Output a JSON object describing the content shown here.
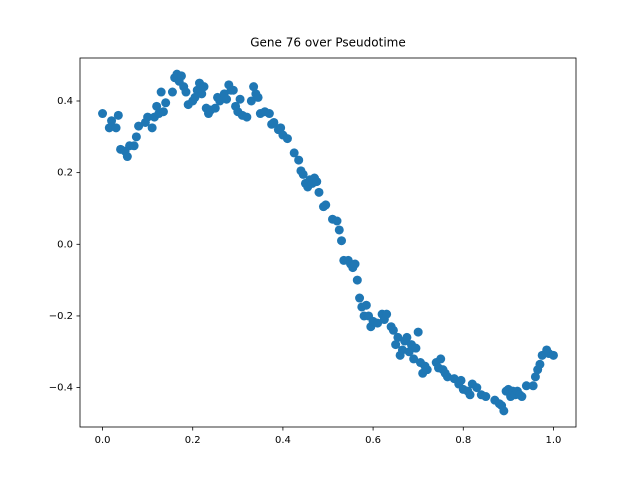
{
  "chart_data": {
    "type": "scatter",
    "title": "Gene 76 over Pseudotime",
    "color": "#1f77b4",
    "x": [
      0.0,
      0.015,
      0.02,
      0.03,
      0.035,
      0.04,
      0.05,
      0.055,
      0.06,
      0.07,
      0.075,
      0.08,
      0.095,
      0.1,
      0.11,
      0.115,
      0.12,
      0.125,
      0.13,
      0.135,
      0.14,
      0.155,
      0.16,
      0.165,
      0.17,
      0.175,
      0.18,
      0.185,
      0.19,
      0.2,
      0.205,
      0.21,
      0.215,
      0.22,
      0.225,
      0.23,
      0.235,
      0.24,
      0.25,
      0.255,
      0.26,
      0.27,
      0.275,
      0.28,
      0.285,
      0.29,
      0.295,
      0.3,
      0.305,
      0.31,
      0.32,
      0.33,
      0.335,
      0.34,
      0.345,
      0.35,
      0.36,
      0.37,
      0.375,
      0.38,
      0.39,
      0.395,
      0.4,
      0.41,
      0.425,
      0.435,
      0.44,
      0.445,
      0.45,
      0.455,
      0.46,
      0.465,
      0.47,
      0.475,
      0.48,
      0.49,
      0.495,
      0.51,
      0.52,
      0.525,
      0.53,
      0.535,
      0.545,
      0.55,
      0.555,
      0.56,
      0.565,
      0.57,
      0.575,
      0.58,
      0.585,
      0.59,
      0.595,
      0.6,
      0.61,
      0.62,
      0.625,
      0.63,
      0.64,
      0.645,
      0.65,
      0.655,
      0.66,
      0.665,
      0.67,
      0.675,
      0.68,
      0.685,
      0.69,
      0.695,
      0.7,
      0.705,
      0.71,
      0.715,
      0.72,
      0.74,
      0.745,
      0.75,
      0.755,
      0.76,
      0.765,
      0.78,
      0.79,
      0.795,
      0.8,
      0.81,
      0.815,
      0.82,
      0.83,
      0.84,
      0.85,
      0.87,
      0.88,
      0.885,
      0.89,
      0.895,
      0.9,
      0.905,
      0.91,
      0.915,
      0.92,
      0.925,
      0.93,
      0.94,
      0.955,
      0.96,
      0.965,
      0.97,
      0.975,
      0.985,
      0.99,
      1.0
    ],
    "values": [
      0.365,
      0.325,
      0.345,
      0.325,
      0.36,
      0.265,
      0.26,
      0.245,
      0.275,
      0.275,
      0.3,
      0.33,
      0.34,
      0.355,
      0.325,
      0.355,
      0.385,
      0.365,
      0.425,
      0.37,
      0.395,
      0.425,
      0.465,
      0.475,
      0.455,
      0.47,
      0.44,
      0.425,
      0.39,
      0.4,
      0.41,
      0.43,
      0.45,
      0.42,
      0.44,
      0.38,
      0.365,
      0.375,
      0.38,
      0.41,
      0.4,
      0.42,
      0.405,
      0.445,
      0.43,
      0.43,
      0.385,
      0.37,
      0.405,
      0.36,
      0.355,
      0.4,
      0.44,
      0.42,
      0.41,
      0.365,
      0.37,
      0.365,
      0.335,
      0.34,
      0.32,
      0.325,
      0.305,
      0.295,
      0.255,
      0.235,
      0.205,
      0.195,
      0.17,
      0.16,
      0.18,
      0.17,
      0.185,
      0.175,
      0.145,
      0.105,
      0.11,
      0.07,
      0.065,
      0.04,
      0.01,
      -0.045,
      -0.045,
      -0.055,
      -0.065,
      -0.055,
      -0.1,
      -0.15,
      -0.175,
      -0.2,
      -0.17,
      -0.2,
      -0.23,
      -0.215,
      -0.22,
      -0.195,
      -0.21,
      -0.195,
      -0.23,
      -0.24,
      -0.28,
      -0.26,
      -0.31,
      -0.295,
      -0.27,
      -0.26,
      -0.3,
      -0.28,
      -0.32,
      -0.29,
      -0.245,
      -0.33,
      -0.36,
      -0.34,
      -0.35,
      -0.33,
      -0.345,
      -0.32,
      -0.35,
      -0.36,
      -0.37,
      -0.375,
      -0.39,
      -0.38,
      -0.405,
      -0.41,
      -0.42,
      -0.39,
      -0.4,
      -0.42,
      -0.425,
      -0.435,
      -0.445,
      -0.45,
      -0.465,
      -0.41,
      -0.405,
      -0.425,
      -0.41,
      -0.42,
      -0.41,
      -0.42,
      -0.425,
      -0.395,
      -0.395,
      -0.37,
      -0.35,
      -0.335,
      -0.31,
      -0.295,
      -0.305,
      -0.31
    ],
    "xlim": [
      -0.05,
      1.05
    ],
    "ylim": [
      -0.51,
      0.52
    ],
    "xticks": [
      {
        "value": 0,
        "label": "0.0"
      },
      {
        "value": 0.2,
        "label": "0.2"
      },
      {
        "value": 0.4,
        "label": "0.4"
      },
      {
        "value": 0.6,
        "label": "0.6"
      },
      {
        "value": 0.8,
        "label": "0.8"
      },
      {
        "value": 1,
        "label": "1.0"
      }
    ],
    "yticks": [
      {
        "value": -0.4,
        "label": "−0.4"
      },
      {
        "value": -0.2,
        "label": "−0.2"
      },
      {
        "value": 0,
        "label": "0.0"
      },
      {
        "value": 0.2,
        "label": "0.2"
      },
      {
        "value": 0.4,
        "label": "0.4"
      }
    ]
  }
}
